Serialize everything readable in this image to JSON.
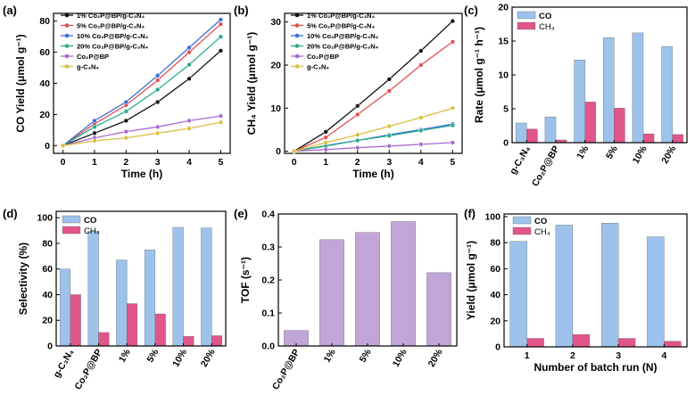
{
  "colors": {
    "s1": "#111111",
    "s5": "#e05050",
    "s10": "#3a6fd8",
    "s20": "#2aaa8a",
    "cop": "#a66ad0",
    "gcn": "#d8c040",
    "co_bar": "#9dc3ec",
    "ch4_bar": "#e0558a",
    "tof_bar": "#c0a5d8"
  },
  "chart_data": [
    {
      "id": "a",
      "panel_label": "(a)",
      "type": "line",
      "xlabel": "Time (h)",
      "ylabel": "CO Yield (μmol g⁻¹)",
      "xlim": [
        -0.3,
        5.3
      ],
      "ylim": [
        -5,
        85
      ],
      "xticks": [
        0,
        1,
        2,
        3,
        4,
        5
      ],
      "yticks": [
        0,
        20,
        40,
        60,
        80
      ],
      "x": [
        0,
        1,
        2,
        3,
        4,
        5
      ],
      "legend": "top-left",
      "series": [
        {
          "name": "1%  Co₂P@BP/g-C₃N₄",
          "color_key": "s1",
          "values": [
            0,
            8,
            16,
            28,
            43,
            61
          ]
        },
        {
          "name": "5%  Co₂P@BP/g-C₃N₄",
          "color_key": "s5",
          "values": [
            0,
            14,
            26,
            42,
            60,
            78
          ]
        },
        {
          "name": "10% Co₂P@BP/g-C₃N₄",
          "color_key": "s10",
          "values": [
            0,
            16,
            28,
            45,
            63,
            81
          ]
        },
        {
          "name": "20% Co₂P@BP/g-C₃N₄",
          "color_key": "s20",
          "values": [
            0,
            12,
            22,
            36,
            52,
            70
          ]
        },
        {
          "name": "Co₂P@BP",
          "color_key": "cop",
          "values": [
            0,
            5,
            9,
            12,
            16,
            19
          ]
        },
        {
          "name": "g-C₃N₄",
          "color_key": "gcn",
          "values": [
            0,
            3,
            5,
            8,
            11,
            15
          ]
        }
      ]
    },
    {
      "id": "b",
      "panel_label": "(b)",
      "type": "line",
      "xlabel": "Time (h)",
      "ylabel": "CH₄ Yield (μmol g⁻¹)",
      "xlim": [
        -0.3,
        5.3
      ],
      "ylim": [
        -0.5,
        32
      ],
      "xticks": [
        0,
        1,
        2,
        3,
        4,
        5
      ],
      "yticks": [
        0,
        10,
        20,
        30
      ],
      "x": [
        0,
        1,
        2,
        3,
        4,
        5
      ],
      "legend": "top-left",
      "series": [
        {
          "name": "1%  Co₂P@BP/g-C₃N₄",
          "color_key": "s1",
          "values": [
            0,
            4.5,
            10.5,
            16.7,
            23.3,
            30.2
          ]
        },
        {
          "name": "5%  Co₂P@BP/g-C₃N₄",
          "color_key": "s5",
          "values": [
            0,
            3.2,
            8.5,
            14,
            20,
            25.4
          ]
        },
        {
          "name": "10% Co₂P@BP/g-C₃N₄",
          "color_key": "s10",
          "values": [
            0,
            1.3,
            2.5,
            3.8,
            5,
            6.3
          ]
        },
        {
          "name": "20% Co₂P@BP/g-C₃N₄",
          "color_key": "s20",
          "values": [
            0,
            1.2,
            2.5,
            3.6,
            4.8,
            6
          ]
        },
        {
          "name": "Co₂P@BP",
          "color_key": "cop",
          "values": [
            0,
            0.4,
            0.8,
            1.2,
            1.6,
            2
          ]
        },
        {
          "name": "g-C₃N₄",
          "color_key": "gcn",
          "values": [
            0,
            2,
            3.8,
            5.8,
            7.8,
            10
          ]
        }
      ]
    },
    {
      "id": "c",
      "panel_label": "(c)",
      "type": "bar",
      "xlabel": "",
      "ylabel": "Rate (μmol g⁻¹ h⁻¹)",
      "ylim": [
        0,
        20
      ],
      "yticks": [
        0,
        5,
        10,
        15,
        20
      ],
      "categories": [
        "g-C₃N₄",
        "Co₂P@BP",
        "1%",
        "5%",
        "10%",
        "20%"
      ],
      "legend": "top-left",
      "series": [
        {
          "name": "CO",
          "color_key": "co_bar",
          "values": [
            2.9,
            3.8,
            12.2,
            15.5,
            16.2,
            14.2
          ]
        },
        {
          "name": "CH₄",
          "color_key": "ch4_bar",
          "values": [
            2,
            0.4,
            6,
            5.1,
            1.3,
            1.2
          ]
        }
      ]
    },
    {
      "id": "d",
      "panel_label": "(d)",
      "type": "bar",
      "xlabel": "",
      "ylabel": "Selectivity (%)",
      "ylim": [
        0,
        105
      ],
      "yticks": [
        0,
        20,
        40,
        60,
        80,
        100
      ],
      "categories": [
        "g-C₃N₄",
        "Co₂P@BP",
        "1%",
        "5%",
        "10%",
        "20%"
      ],
      "legend": "top-left",
      "series": [
        {
          "name": "CO",
          "color_key": "co_bar",
          "values": [
            60,
            89.5,
            67,
            75,
            92.5,
            92
          ]
        },
        {
          "name": "CH₄",
          "color_key": "ch4_bar",
          "values": [
            40,
            10.5,
            33,
            25,
            7.5,
            8
          ]
        }
      ]
    },
    {
      "id": "e",
      "panel_label": "(e)",
      "type": "bar",
      "xlabel": "",
      "ylabel": "TOF (s⁻¹)",
      "ylim": [
        0,
        0.4
      ],
      "yticks": [
        0.0,
        0.1,
        0.2,
        0.3,
        0.4
      ],
      "categories": [
        "Co₂P@BP",
        "1%",
        "5%",
        "10%",
        "20%"
      ],
      "series": [
        {
          "name": "TOF",
          "color_key": "tof_bar",
          "values": [
            0.047,
            0.322,
            0.344,
            0.377,
            0.222
          ]
        }
      ]
    },
    {
      "id": "f",
      "panel_label": "(f)",
      "type": "bar",
      "xlabel": "Number of batch run (N)",
      "ylabel": "Yield (μmol g⁻¹)",
      "ylim": [
        0,
        102
      ],
      "yticks": [
        0,
        20,
        40,
        60,
        80,
        100
      ],
      "categories": [
        "1",
        "2",
        "3",
        "4"
      ],
      "legend": "top-left",
      "series": [
        {
          "name": "CO",
          "color_key": "co_bar",
          "values": [
            81,
            93.5,
            95,
            84.5
          ]
        },
        {
          "name": "CH₄",
          "color_key": "ch4_bar",
          "values": [
            6.5,
            9.5,
            6.5,
            4.3
          ]
        }
      ]
    }
  ]
}
